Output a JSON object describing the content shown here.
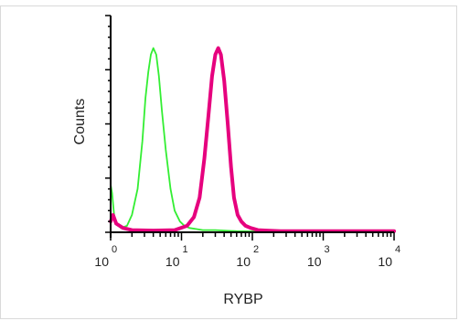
{
  "chart_data": {
    "type": "line",
    "xlabel": "RYBP",
    "ylabel": "Counts",
    "x_scale": "log",
    "xlim": [
      1,
      10000
    ],
    "ylim": [
      0,
      100
    ],
    "grid": false,
    "x_ticks": [
      {
        "value": 1,
        "base": "10",
        "exp": "0"
      },
      {
        "value": 10,
        "base": "10",
        "exp": "1"
      },
      {
        "value": 100,
        "base": "10",
        "exp": "2"
      },
      {
        "value": 1000,
        "base": "10",
        "exp": "3"
      },
      {
        "value": 10000,
        "base": "10",
        "exp": "4"
      }
    ],
    "series": [
      {
        "color": "#33ee33",
        "x": [
          1,
          1.05,
          1.12,
          1.2,
          1.4,
          1.7,
          2,
          2.4,
          2.8,
          3.1,
          3.4,
          3.7,
          4,
          4.4,
          4.8,
          5.3,
          6,
          7,
          8,
          9.5,
          11,
          13,
          16,
          20,
          30,
          60,
          150,
          500,
          2000,
          10000
        ],
        "y": [
          22,
          18,
          8,
          4,
          2,
          3,
          8,
          20,
          42,
          62,
          74,
          82,
          85,
          82,
          72,
          56,
          38,
          20,
          10,
          5,
          3,
          2,
          1.5,
          1,
          1,
          0.5,
          0.3,
          0.3,
          0.3,
          0.3
        ]
      },
      {
        "color": "#e6007e",
        "x": [
          1,
          1.08,
          1.2,
          1.5,
          2,
          4,
          8,
          12,
          15,
          18,
          21,
          24,
          27,
          30,
          33,
          36,
          40,
          45,
          50,
          55,
          62,
          70,
          80,
          95,
          120,
          160,
          250,
          600,
          2000,
          10000
        ],
        "y": [
          5,
          8,
          4,
          2,
          1,
          0.8,
          1,
          3,
          7,
          16,
          34,
          54,
          72,
          82,
          85,
          82,
          70,
          50,
          30,
          16,
          8,
          5,
          3,
          2,
          1,
          0.8,
          0.5,
          0.5,
          0.5,
          0.5
        ]
      }
    ]
  }
}
